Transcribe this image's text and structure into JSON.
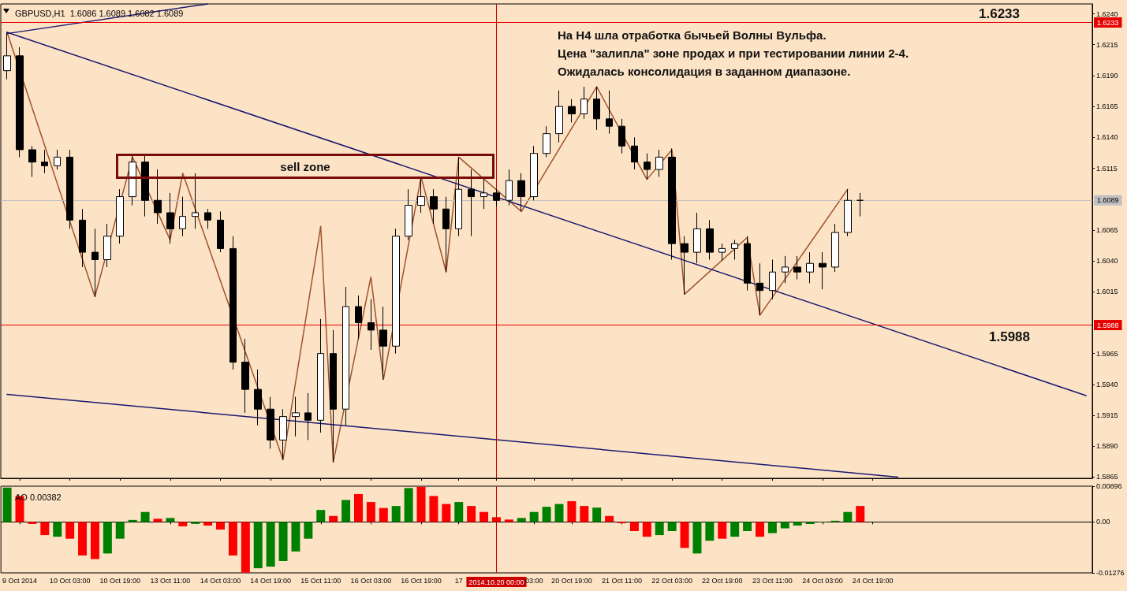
{
  "chart_data": [
    {
      "type": "candlestick",
      "title": "GBPUSD,H1  1.6086 1.6089 1.6082 1.6089",
      "annotations": [
        "На H4 шла отработка бычьей Волны Вульфа.",
        "Цена \"залипла\" зоне продах и при тестировании линии 2-4.",
        "Ожидалась консолидация в заданном диапазоне.",
        "sell zone",
        "1.6233",
        "1.5988"
      ],
      "categories": [
        null,
        "9 Oct 2014",
        null,
        null,
        null,
        "10 Oct 03:00",
        null,
        null,
        null,
        "10 Oct 19:00",
        null,
        null,
        null,
        "13 Oct 11:00",
        null,
        null,
        null,
        "14 Oct 03:00",
        null,
        null,
        null,
        "14 Oct 19:00",
        null,
        null,
        null,
        "15 Oct 11:00",
        null,
        null,
        null,
        "16 Oct 03:00",
        null,
        null,
        null,
        "16 Oct 19:00",
        null,
        null,
        "17",
        null,
        null,
        "2014.10.20 00:00",
        null,
        null,
        "03:00",
        null,
        null,
        "20 Oct 19:00",
        null,
        null,
        null,
        "21 Oct 11:00",
        null,
        null,
        null,
        "22 Oct 03:00",
        null,
        null,
        null,
        "22 Oct 19:00",
        null,
        null,
        null,
        "23 Oct 11:00",
        null,
        null,
        null,
        "24 Oct 03:00",
        null,
        null,
        null,
        "24 Oct 19:00",
        null,
        null,
        null,
        null,
        null,
        null,
        null,
        null,
        null,
        null,
        null,
        null,
        null,
        null,
        null,
        null,
        null
      ],
      "ylim": [
        1.5864,
        1.6248
      ],
      "yticks": [
        1.5865,
        {
          "value": 1.589,
          "label": "1.5890"
        },
        1.5915,
        {
          "value": 1.594,
          "label": "1.5940"
        },
        1.5965,
        1.6015,
        {
          "value": 1.604,
          "label": "1.6040"
        },
        1.6065,
        1.6115,
        {
          "value": 1.614,
          "label": "1.6140"
        },
        1.6165,
        {
          "value": 1.619,
          "label": "1.6190"
        },
        1.6215,
        {
          "value": 1.624,
          "label": "1.6240"
        }
      ],
      "tick_labels": "y",
      "grid": false,
      "marker": "none",
      "ref_lines": [
        {
          "axis": "y",
          "value": 1.6233,
          "label": "1.6233",
          "color": "#e60000"
        },
        {
          "axis": "y",
          "value": 1.5988,
          "label": "1.5988",
          "color": "#e60000"
        },
        {
          "axis": "y",
          "value": 1.6089,
          "label": "1.6089",
          "color": "#c0c0c0"
        },
        {
          "axis": "x",
          "value": "2014.10.20 00:00",
          "color": "#cc0000"
        }
      ],
      "series": [
        {
          "color": "#000000",
          "ohlc": [
            [
              1.6194,
              1.6225,
              1.6187,
              1.6206
            ],
            [
              1.6206,
              1.6213,
              1.6124,
              1.613
            ],
            [
              1.613,
              1.6133,
              1.6108,
              1.612
            ],
            [
              1.612,
              1.613,
              1.6111,
              1.6117
            ],
            [
              1.6117,
              1.613,
              1.6114,
              1.6124
            ],
            [
              1.6124,
              1.613,
              1.6066,
              1.6073
            ],
            [
              1.6073,
              1.6082,
              1.6035,
              1.6047
            ],
            [
              1.6047,
              1.6066,
              1.6011,
              1.6041
            ],
            [
              1.6041,
              1.607,
              1.6035,
              1.606
            ],
            [
              1.606,
              1.6098,
              1.6054,
              1.6092
            ],
            [
              1.6092,
              1.6126,
              1.6085,
              1.612
            ],
            [
              1.612,
              1.6125,
              1.6076,
              1.6089
            ],
            [
              1.6089,
              1.6114,
              1.607,
              1.6079
            ],
            [
              1.6079,
              1.6095,
              1.6054,
              1.6066
            ],
            [
              1.6066,
              1.6092,
              1.606,
              1.6076
            ],
            [
              1.6076,
              1.6111,
              1.6066,
              1.6079
            ],
            [
              1.6079,
              1.6082,
              1.6066,
              1.6073
            ],
            [
              1.6073,
              1.608,
              1.6047,
              1.605
            ],
            [
              1.605,
              1.606,
              1.5952,
              1.5958
            ],
            [
              1.5958,
              1.5977,
              1.5917,
              1.5936
            ],
            [
              1.5936,
              1.5952,
              1.5907,
              1.592
            ],
            [
              1.592,
              1.593,
              1.5888,
              1.5895
            ],
            [
              1.5895,
              1.592,
              1.5879,
              1.5914
            ],
            [
              1.5914,
              1.593,
              1.5898,
              1.5917
            ],
            [
              1.5917,
              1.5933,
              1.5895,
              1.5911
            ],
            [
              1.5911,
              1.5993,
              1.5901,
              1.5965
            ],
            [
              1.5965,
              1.5984,
              1.5877,
              1.592
            ],
            [
              1.592,
              1.6019,
              1.5907,
              1.6003
            ],
            [
              1.6003,
              1.6012,
              1.5977,
              1.599
            ],
            [
              1.599,
              1.6009,
              1.5968,
              1.5984
            ],
            [
              1.5984,
              1.6003,
              1.5944,
              1.5971
            ],
            [
              1.5971,
              1.6066,
              1.5965,
              1.606
            ],
            [
              1.606,
              1.6098,
              1.6057,
              1.6085
            ],
            [
              1.6085,
              1.6108,
              1.6079,
              1.6092
            ],
            [
              1.6092,
              1.6098,
              1.607,
              1.6082
            ],
            [
              1.6082,
              1.6092,
              1.6031,
              1.6066
            ],
            [
              1.6066,
              1.6124,
              1.606,
              1.6098
            ],
            [
              1.6098,
              1.6114,
              1.606,
              1.6092
            ],
            [
              1.6092,
              1.6108,
              1.6082,
              1.6095
            ],
            [
              1.6095,
              1.6098,
              1.6084,
              1.6089
            ],
            [
              1.6089,
              1.6114,
              1.6085,
              1.6105
            ],
            [
              1.6105,
              1.6111,
              1.608,
              1.6092
            ],
            [
              1.6092,
              1.6133,
              1.6089,
              1.6127
            ],
            [
              1.6127,
              1.6149,
              1.6124,
              1.6143
            ],
            [
              1.6143,
              1.6178,
              1.6136,
              1.6165
            ],
            [
              1.6165,
              1.6171,
              1.6152,
              1.6159
            ],
            [
              1.6159,
              1.6181,
              1.6155,
              1.6171
            ],
            [
              1.6171,
              1.6181,
              1.6146,
              1.6155
            ],
            [
              1.6155,
              1.6178,
              1.6143,
              1.6149
            ],
            [
              1.6149,
              1.6155,
              1.6127,
              1.6133
            ],
            [
              1.6133,
              1.614,
              1.6114,
              1.612
            ],
            [
              1.612,
              1.6127,
              1.6106,
              1.6114
            ],
            [
              1.6114,
              1.613,
              1.6108,
              1.6124
            ],
            [
              1.6124,
              1.6131,
              1.6041,
              1.6054
            ],
            [
              1.6054,
              1.606,
              1.6013,
              1.6047
            ],
            [
              1.6047,
              1.6079,
              1.6038,
              1.6066
            ],
            [
              1.6066,
              1.6073,
              1.6041,
              1.6047
            ],
            [
              1.6047,
              1.6054,
              1.604,
              1.605
            ],
            [
              1.605,
              1.6057,
              1.6041,
              1.6054
            ],
            [
              1.6054,
              1.606,
              1.6016,
              1.6022
            ],
            [
              1.6022,
              1.6038,
              1.5996,
              1.6016
            ],
            [
              1.6016,
              1.6041,
              1.6009,
              1.6031
            ],
            [
              1.6031,
              1.6044,
              1.6022,
              1.6035
            ],
            [
              1.6035,
              1.6044,
              1.6025,
              1.6031
            ],
            [
              1.6031,
              1.6047,
              1.6022,
              1.6038
            ],
            [
              1.6038,
              1.6047,
              1.6017,
              1.6035
            ],
            [
              1.6035,
              1.607,
              1.6031,
              1.6063
            ],
            [
              1.6063,
              1.6098,
              1.606,
              1.6089
            ],
            [
              1.6089,
              1.6095,
              1.6076,
              1.6089
            ],
            null,
            null,
            null,
            null,
            null,
            null,
            null,
            null,
            null,
            null,
            null,
            null,
            null,
            null,
            null,
            null,
            null,
            null
          ]
        },
        {
          "type": "line",
          "color": "#a0522d",
          "values": [
            1.6225,
            null,
            null,
            null,
            null,
            null,
            null,
            1.6011,
            null,
            null,
            1.6124,
            null,
            null,
            1.6057,
            1.6111,
            null,
            null,
            null,
            null,
            null,
            null,
            null,
            1.5879,
            null,
            null,
            1.6068,
            1.5877,
            null,
            null,
            1.6027,
            1.5944,
            null,
            null,
            1.6108,
            null,
            1.6031,
            1.6124,
            null,
            null,
            null,
            null,
            1.608,
            null,
            null,
            null,
            null,
            null,
            1.6181,
            null,
            null,
            null,
            1.6106,
            null,
            1.613,
            1.6013,
            null,
            null,
            null,
            null,
            1.6059,
            1.5996,
            null,
            null,
            null,
            null,
            null,
            null,
            1.6098,
            null,
            null,
            null,
            null,
            null,
            null,
            null,
            null,
            null,
            null,
            null,
            null,
            null,
            null,
            null,
            null,
            null,
            null,
            null
          ]
        },
        {
          "type": "line",
          "color": "#191970",
          "values": [
            1.6224,
            null,
            null,
            null,
            null,
            null,
            null,
            null,
            null,
            null,
            null,
            null,
            null,
            null,
            null,
            null,
            1.6248,
            null,
            null,
            null,
            null,
            null,
            null,
            null,
            null,
            null,
            null,
            null,
            null,
            null,
            null,
            null,
            null,
            null,
            null,
            null,
            null,
            null,
            null,
            null,
            null,
            null,
            null,
            null,
            null,
            null,
            null,
            null,
            null,
            null,
            null,
            null,
            null,
            null,
            null,
            null,
            null,
            null,
            null,
            null,
            null,
            null,
            null,
            null,
            null,
            null,
            null,
            null,
            null,
            null,
            null,
            null,
            null,
            null,
            null,
            null,
            null,
            null,
            null,
            null,
            null,
            null,
            null,
            null,
            null,
            null,
            null
          ]
        },
        {
          "type": "line",
          "color": "#191970",
          "values": [
            1.6225,
            null,
            null,
            null,
            null,
            null,
            null,
            null,
            null,
            null,
            null,
            null,
            null,
            null,
            null,
            null,
            null,
            null,
            null,
            null,
            null,
            null,
            null,
            null,
            null,
            null,
            null,
            null,
            null,
            null,
            null,
            null,
            null,
            null,
            null,
            null,
            null,
            null,
            null,
            null,
            null,
            null,
            null,
            null,
            null,
            null,
            null,
            null,
            null,
            null,
            null,
            null,
            null,
            null,
            null,
            null,
            null,
            null,
            null,
            null,
            null,
            null,
            null,
            null,
            null,
            null,
            null,
            null,
            null,
            null,
            null,
            null,
            null,
            null,
            null,
            null,
            null,
            null,
            null,
            null,
            null,
            null,
            null,
            null,
            null,
            null,
            1.5931
          ]
        },
        {
          "type": "line",
          "color": "#191970",
          "values": [
            1.5932,
            null,
            null,
            null,
            null,
            null,
            null,
            null,
            null,
            null,
            null,
            null,
            null,
            null,
            null,
            null,
            null,
            null,
            null,
            null,
            null,
            null,
            null,
            null,
            null,
            null,
            null,
            null,
            null,
            null,
            null,
            null,
            null,
            null,
            null,
            null,
            null,
            null,
            null,
            null,
            null,
            null,
            null,
            null,
            null,
            null,
            null,
            null,
            null,
            null,
            null,
            null,
            null,
            null,
            null,
            null,
            null,
            null,
            null,
            null,
            null,
            null,
            null,
            null,
            null,
            null,
            null,
            null,
            null,
            null,
            null,
            1.5865,
            null,
            null,
            null,
            null,
            null,
            null,
            null,
            null,
            null,
            null,
            null,
            null,
            null,
            null,
            null
          ]
        }
      ]
    },
    {
      "type": "bar",
      "title": "AO 0.00382",
      "categories": [
        null,
        "9 Oct 2014",
        null,
        null,
        null,
        "10 Oct 03:00",
        null,
        null,
        null,
        "10 Oct 19:00",
        null,
        null,
        null,
        "13 Oct 11:00",
        null,
        null,
        null,
        "14 Oct 03:00",
        null,
        null,
        null,
        "14 Oct 19:00",
        null,
        null,
        null,
        "15 Oct 11:00",
        null,
        null,
        null,
        "16 Oct 03:00",
        null,
        null,
        null,
        "16 Oct 19:00",
        null,
        null,
        "17",
        null,
        null,
        "2014.10.20 00:00",
        null,
        null,
        "03:00",
        null,
        null,
        "20 Oct 19:00",
        null,
        null,
        null,
        "21 Oct 11:00",
        null,
        null,
        null,
        "22 Oct 03:00",
        null,
        null,
        null,
        "22 Oct 19:00",
        null,
        null,
        null,
        "23 Oct 11:00",
        null,
        null,
        null,
        "24 Oct 03:00",
        null,
        null,
        null,
        "24 Oct 19:00",
        null,
        null,
        null,
        null,
        null,
        null,
        null,
        null,
        null,
        null,
        null,
        null,
        null,
        null,
        null,
        null,
        null
      ],
      "ylim": [
        -0.01276,
        0.00896
      ],
      "yticks": [
        -0.01276,
        {
          "value": 0,
          "label": "0.00"
        },
        0.00896
      ],
      "grid": false,
      "ref_lines": [
        {
          "axis": "x",
          "value": "2014.10.20 00:00",
          "color": "#cc0000"
        }
      ],
      "series": [
        {
          "values": [
            0.0086,
            0.0065,
            -0.0005,
            -0.0033,
            -0.0037,
            -0.0042,
            -0.0084,
            -0.0093,
            -0.0079,
            -0.0042,
            0.0005,
            0.0025,
            0.0008,
            0.001,
            -0.0011,
            -0.0005,
            -0.0009,
            -0.0019,
            -0.0084,
            -0.0127,
            -0.0116,
            -0.0112,
            -0.0098,
            -0.0074,
            -0.0042,
            0.003,
            0.0015,
            0.0055,
            0.007,
            0.005,
            0.0035,
            0.004,
            0.0085,
            0.0088,
            0.0065,
            0.0045,
            0.005,
            0.004,
            0.0025,
            0.0012,
            0.0006,
            0.001,
            0.0025,
            0.0038,
            0.0045,
            0.0052,
            0.004,
            0.0036,
            0.0015,
            -0.0003,
            -0.0023,
            -0.0037,
            -0.0033,
            -0.0023,
            -0.0065,
            -0.0079,
            -0.0047,
            -0.0042,
            -0.0037,
            -0.0023,
            -0.0037,
            -0.0028,
            -0.0016,
            -0.0009,
            -0.0005,
            -0.0001,
            0.0003,
            0.0025,
            0.004,
            null,
            null,
            null,
            null,
            null,
            null,
            null,
            null,
            null,
            null,
            null,
            null,
            null,
            null,
            null,
            null,
            null,
            null
          ],
          "colors": [
            "#008000",
            "#ff0000",
            "#ff0000",
            "#ff0000",
            "#008000",
            "#ff0000",
            "#ff0000",
            "#ff0000",
            "#008000",
            "#008000",
            "#008000",
            "#008000",
            "#ff0000",
            "#008000",
            "#ff0000",
            "#008000",
            "#ff0000",
            "#ff0000",
            "#ff0000",
            "#ff0000",
            "#008000",
            "#008000",
            "#008000",
            "#008000",
            "#008000",
            "#008000",
            "#ff0000",
            "#008000",
            "#ff0000",
            "#ff0000",
            "#ff0000",
            "#008000",
            "#008000",
            "#ff0000",
            "#ff0000",
            "#ff0000",
            "#008000",
            "#ff0000",
            "#ff0000",
            "#ff0000",
            "#ff0000",
            "#008000",
            "#008000",
            "#008000",
            "#008000",
            "#ff0000",
            "#ff0000",
            "#008000",
            "#ff0000",
            "#ff0000",
            "#ff0000",
            "#ff0000",
            "#008000",
            "#008000",
            "#ff0000",
            "#008000",
            "#008000",
            "#ff0000",
            "#008000",
            "#008000",
            "#ff0000",
            "#008000",
            "#008000",
            "#008000",
            "#008000",
            "#008000",
            "#008000",
            "#008000",
            "#ff0000",
            null,
            null,
            null,
            null,
            null,
            null,
            null,
            null,
            null,
            null,
            null,
            null,
            null,
            null,
            null,
            null,
            null,
            null
          ]
        }
      ]
    }
  ]
}
